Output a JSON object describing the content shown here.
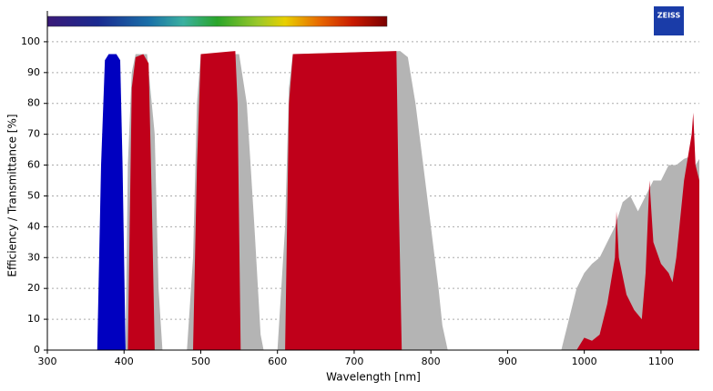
{
  "chart_data": {
    "type": "area",
    "xlabel": "Wavelength [nm]",
    "ylabel": "Efficiency / Transmittance [%]",
    "logo": "ZEISS",
    "xlim": [
      300,
      1150
    ],
    "xticks": [
      300,
      400,
      500,
      600,
      700,
      800,
      900,
      1000,
      1100
    ],
    "ylim": [
      0,
      110
    ],
    "yticks": [
      0,
      10,
      20,
      30,
      40,
      50,
      60,
      70,
      80,
      90,
      100
    ],
    "grid": true,
    "series": [
      {
        "color": "#b4b4b4",
        "x": [
          400,
          402,
          405,
          410,
          415,
          430,
          440,
          445,
          450,
          482,
          490,
          495,
          500,
          550,
          560,
          570,
          578,
          582,
          600,
          610,
          615,
          620,
          760,
          770,
          780,
          790,
          800,
          810,
          815,
          822,
          970,
          980,
          990,
          1000,
          1010,
          1020,
          1030,
          1040,
          1050,
          1060,
          1070,
          1080,
          1090,
          1100,
          1110,
          1120,
          1130,
          1140,
          1145,
          1150
        ],
        "values": [
          0,
          0,
          60,
          90,
          96,
          96,
          70,
          20,
          0,
          0,
          30,
          80,
          96,
          96,
          80,
          40,
          5,
          0,
          0,
          40,
          85,
          96,
          97,
          95,
          80,
          60,
          40,
          20,
          8,
          0,
          0,
          10,
          20,
          25,
          28,
          30,
          35,
          40,
          48,
          50,
          45,
          50,
          55,
          55,
          60,
          60,
          62,
          63,
          60,
          62
        ]
      },
      {
        "color": "#c0001a",
        "x": [
          400,
          405,
          410,
          415,
          425,
          432,
          436,
          440,
          490,
          495,
          500,
          545,
          548,
          552,
          610,
          615,
          620,
          755,
          758,
          762,
          990,
          1000,
          1010,
          1020,
          1030,
          1040,
          1042,
          1045,
          1055,
          1065,
          1075,
          1080,
          1085,
          1090,
          1100,
          1110,
          1115,
          1120,
          1130,
          1140,
          1142,
          1145,
          1150
        ],
        "values": [
          0,
          0,
          85,
          95,
          96,
          93,
          50,
          0,
          0,
          60,
          96,
          97,
          80,
          0,
          0,
          80,
          96,
          97,
          50,
          0,
          0,
          4,
          3,
          5,
          15,
          30,
          45,
          30,
          18,
          13,
          10,
          25,
          55,
          35,
          28,
          25,
          22,
          30,
          55,
          70,
          77,
          60,
          55
        ]
      },
      {
        "color": "#0000c0",
        "x": [
          365,
          370,
          375,
          380,
          390,
          395,
          398,
          402
        ],
        "values": [
          0,
          60,
          94,
          96,
          96,
          94,
          60,
          0
        ]
      }
    ]
  }
}
